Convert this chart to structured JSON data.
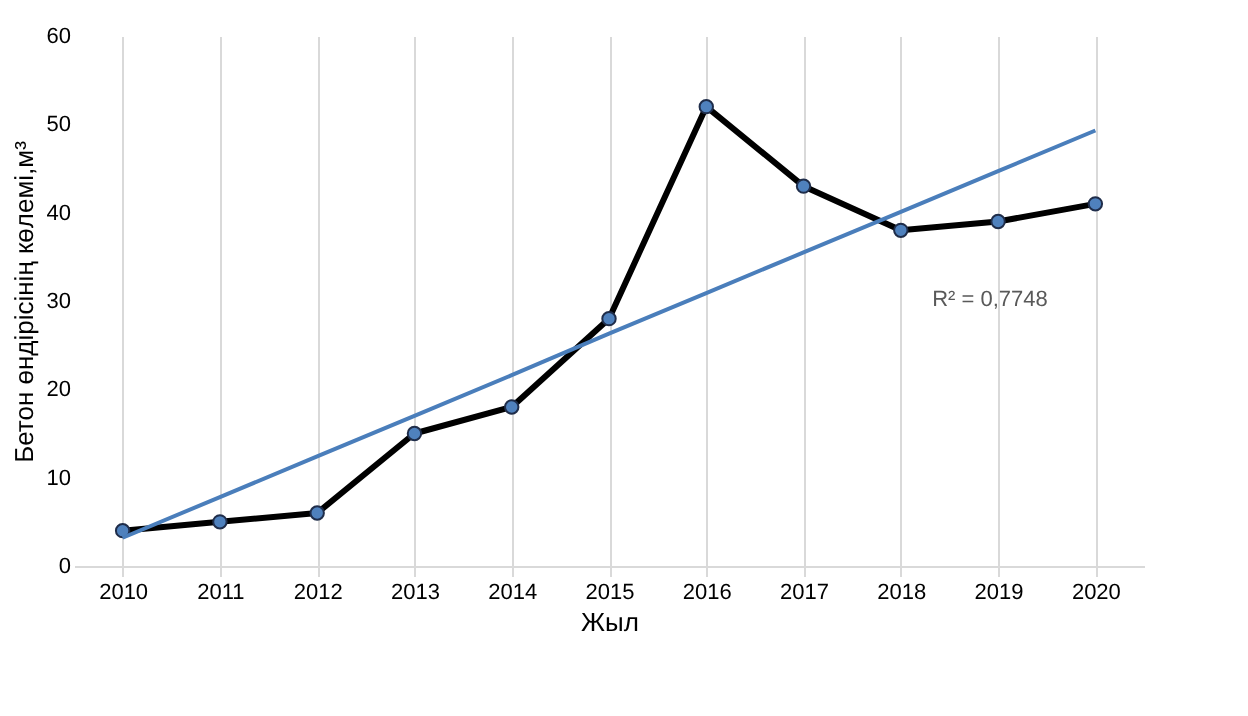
{
  "chart_data": {
    "type": "line",
    "xlabel": "Жыл",
    "ylabel": "Бетон өндірісінің көлемі,м³",
    "categories": [
      "2010",
      "2011",
      "2012",
      "2013",
      "2014",
      "2015",
      "2016",
      "2017",
      "2018",
      "2019",
      "2020"
    ],
    "series": [
      {
        "color": "#000000",
        "values": [
          4,
          5,
          6,
          15,
          18,
          28,
          52,
          43,
          38,
          39,
          41
        ],
        "marker": "circle"
      },
      {
        "type": "line",
        "color": "#4a7ebb",
        "values": [
          3.2,
          7.8,
          12.4,
          17.0,
          21.6,
          26.3,
          30.9,
          35.5,
          40.1,
          44.7,
          49.3
        ],
        "marker": "none"
      }
    ],
    "annotations": [
      "R² = 0,7748"
    ],
    "ylim": [
      0,
      60
    ],
    "yticks": [
      0,
      10,
      20,
      30,
      40,
      50,
      60
    ],
    "grid": "x",
    "line_style": "solid"
  }
}
